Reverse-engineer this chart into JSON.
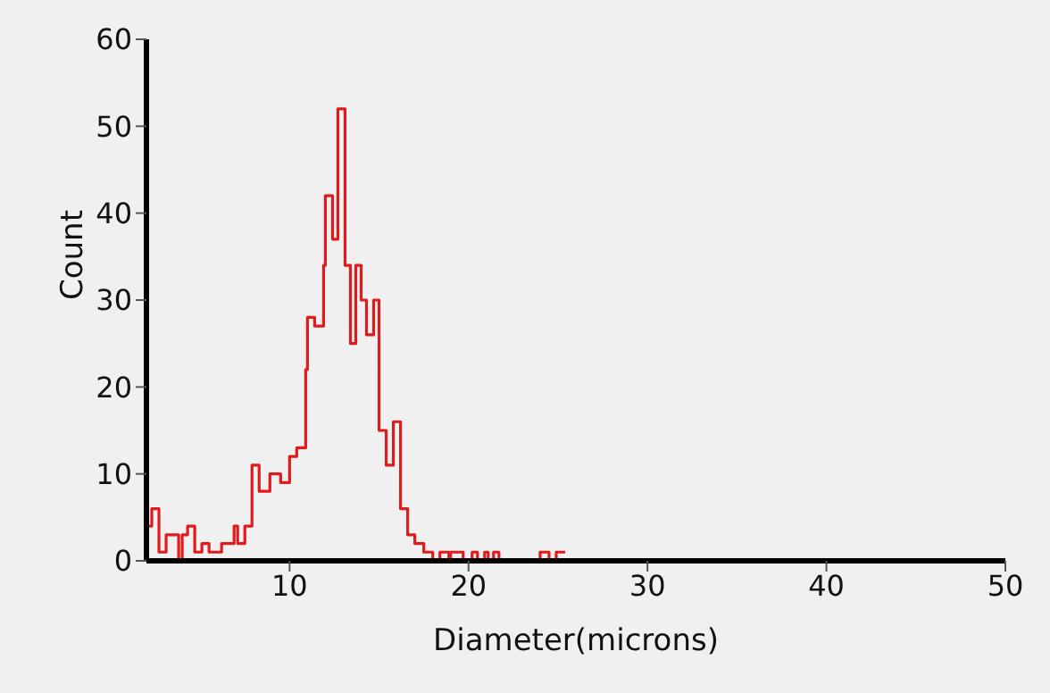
{
  "chart_data": {
    "type": "histogram",
    "xlabel": "Diameter(microns)",
    "ylabel": "Count",
    "color": "#e31a1c",
    "bins": [
      2.0,
      2.3,
      2.7,
      3.1,
      3.8,
      4.0,
      4.3,
      4.7,
      5.1,
      5.5,
      6.2,
      6.9,
      7.1,
      7.5,
      7.9,
      8.3,
      8.9,
      9.5,
      10.0,
      10.4,
      10.9,
      11.0,
      11.4,
      11.9,
      12.0,
      12.4,
      12.7,
      13.1,
      13.4,
      13.7,
      14.0,
      14.3,
      14.7,
      15.0,
      15.4,
      15.8,
      16.2,
      16.6,
      17.0,
      17.5,
      18.0,
      18.4,
      18.9,
      19.0,
      19.7,
      20.2,
      20.5,
      20.9,
      21.1,
      21.4,
      21.7,
      24.0,
      24.5,
      24.9,
      25.4
    ],
    "values": [
      4,
      6,
      1,
      3,
      0,
      3,
      4,
      1,
      2,
      1,
      2,
      4,
      2,
      4,
      11,
      8,
      10,
      9,
      12,
      13,
      22,
      28,
      27,
      34,
      42,
      37,
      52,
      34,
      25,
      34,
      30,
      26,
      30,
      15,
      11,
      16,
      6,
      3,
      2,
      1,
      0,
      1,
      0,
      1,
      0,
      1,
      0,
      1,
      0,
      1,
      0,
      1,
      0,
      1
    ],
    "xlim": [
      2,
      50
    ],
    "xticks": [
      10,
      20,
      30,
      40,
      50
    ],
    "ylim": [
      0,
      60
    ],
    "yticks": [
      0,
      10,
      20,
      30,
      40,
      50,
      60
    ],
    "grid": false,
    "legend": false
  }
}
